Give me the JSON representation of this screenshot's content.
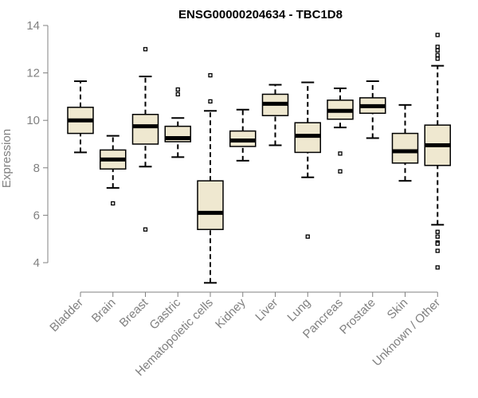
{
  "chart_data": {
    "type": "boxplot",
    "title": "ENSG00000204634 - TBC1D8",
    "ylabel": "Expression",
    "ylim": [
      3.5,
      14
    ],
    "yticks": [
      4,
      6,
      8,
      10,
      12,
      14
    ],
    "categories": [
      "Bladder",
      "Brain",
      "Breast",
      "Gastric",
      "Hematopoietic cells",
      "Kidney",
      "Liver",
      "Lung",
      "Pancreas",
      "Prostate",
      "Skin",
      "Unknown / Other"
    ],
    "boxes": [
      {
        "category": "Bladder",
        "whisker_low": 8.65,
        "q1": 9.45,
        "median": 10.0,
        "q3": 10.55,
        "whisker_high": 11.65,
        "outliers": []
      },
      {
        "category": "Brain",
        "whisker_low": 7.15,
        "q1": 7.95,
        "median": 8.35,
        "q3": 8.75,
        "whisker_high": 9.35,
        "outliers": [
          6.5
        ]
      },
      {
        "category": "Breast",
        "whisker_low": 8.05,
        "q1": 9.0,
        "median": 9.75,
        "q3": 10.25,
        "whisker_high": 11.85,
        "outliers": [
          13.0,
          5.4
        ]
      },
      {
        "category": "Gastric",
        "whisker_low": 8.45,
        "q1": 9.1,
        "median": 9.25,
        "q3": 9.75,
        "whisker_high": 10.1,
        "outliers": [
          11.3,
          11.1
        ]
      },
      {
        "category": "Hematopoietic cells",
        "whisker_low": 3.15,
        "q1": 5.4,
        "median": 6.1,
        "q3": 7.45,
        "whisker_high": 10.4,
        "outliers": [
          11.9,
          10.8
        ]
      },
      {
        "category": "Kidney",
        "whisker_low": 8.3,
        "q1": 8.9,
        "median": 9.15,
        "q3": 9.55,
        "whisker_high": 10.45,
        "outliers": []
      },
      {
        "category": "Liver",
        "whisker_low": 8.95,
        "q1": 10.2,
        "median": 10.7,
        "q3": 11.1,
        "whisker_high": 11.5,
        "outliers": []
      },
      {
        "category": "Lung",
        "whisker_low": 7.6,
        "q1": 8.65,
        "median": 9.35,
        "q3": 9.9,
        "whisker_high": 11.6,
        "outliers": [
          5.1
        ]
      },
      {
        "category": "Pancreas",
        "whisker_low": 9.7,
        "q1": 10.05,
        "median": 10.4,
        "q3": 10.85,
        "whisker_high": 11.35,
        "outliers": [
          8.6,
          7.85
        ]
      },
      {
        "category": "Prostate",
        "whisker_low": 9.25,
        "q1": 10.3,
        "median": 10.6,
        "q3": 10.95,
        "whisker_high": 11.65,
        "outliers": []
      },
      {
        "category": "Skin",
        "whisker_low": 7.45,
        "q1": 8.2,
        "median": 8.7,
        "q3": 9.45,
        "whisker_high": 10.65,
        "outliers": []
      },
      {
        "category": "Unknown / Other",
        "whisker_low": 5.6,
        "q1": 8.1,
        "median": 8.95,
        "q3": 9.8,
        "whisker_high": 12.3,
        "outliers": [
          13.6,
          13.1,
          12.95,
          12.75,
          12.6,
          5.3,
          4.85,
          4.5,
          4.8,
          3.8,
          5.1
        ]
      }
    ],
    "grid": false,
    "legend": "none",
    "colors": {
      "box_fill": "#efe8d0",
      "box_stroke": "#000000",
      "axis": "#808080"
    }
  }
}
